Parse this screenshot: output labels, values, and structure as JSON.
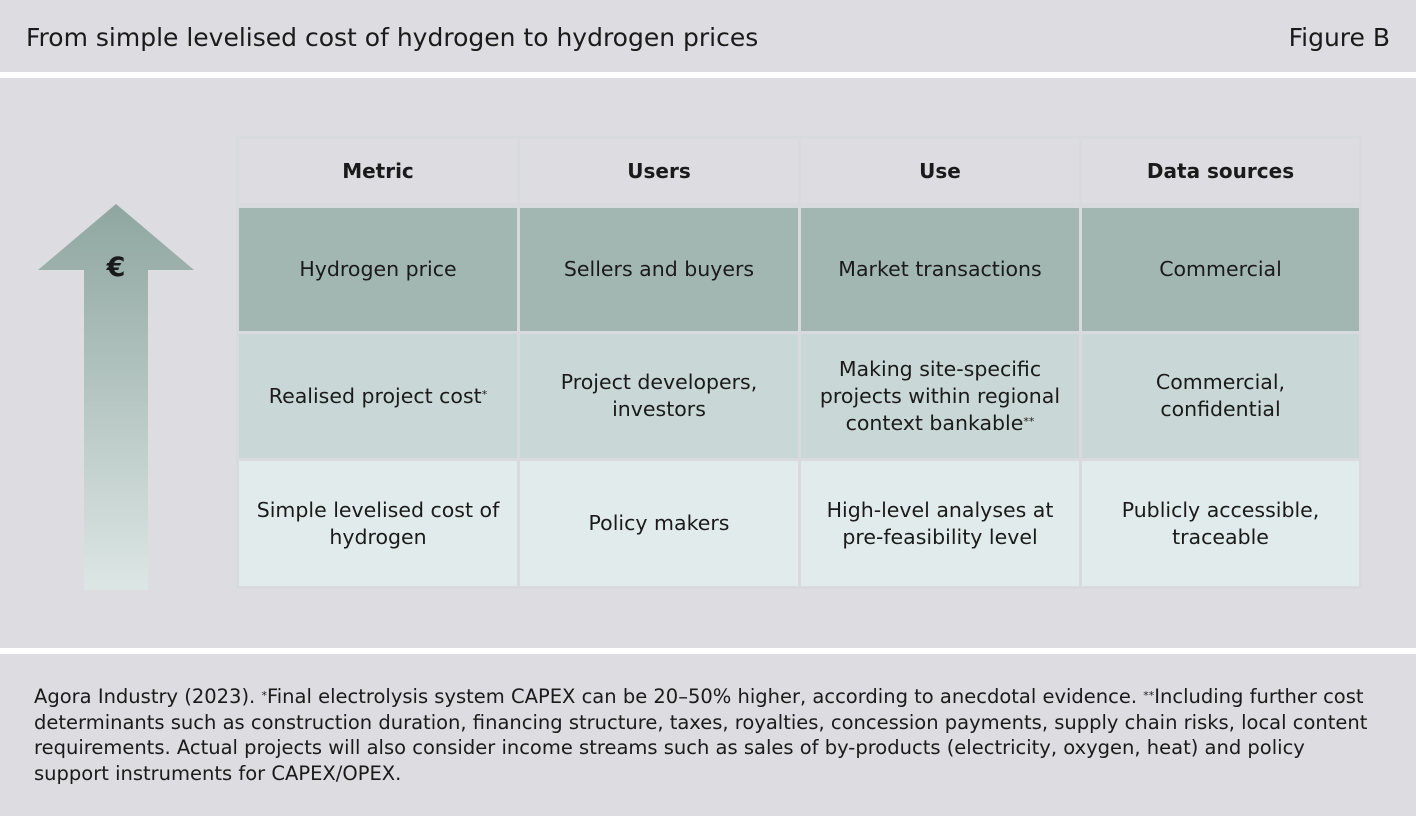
{
  "header": {
    "title": "From simple levelised cost of hydrogen to hydrogen prices",
    "figure_label": "Figure B"
  },
  "arrow": {
    "symbol": "€",
    "color_top": "#8fa6a0",
    "color_bottom": "#dce6e5"
  },
  "table": {
    "columns": [
      "Metric",
      "Users",
      "Use",
      "Data sources"
    ],
    "rows": [
      {
        "metric": "Hydrogen price",
        "metric_mark": "",
        "users": "Sellers and buyers",
        "use_lines": [
          "Market transactions"
        ],
        "use_mark": "",
        "sources": "Commercial",
        "color": "#a2b7b1"
      },
      {
        "metric": "Realised project cost",
        "metric_mark": "*",
        "users": "Project developers, investors",
        "use_lines": [
          "Making site-specific",
          "projects within regional",
          "context bankable"
        ],
        "use_mark": "**",
        "sources": "Commercial, confidential",
        "color": "#c9d8d6"
      },
      {
        "metric": "Simple levelised cost of hydrogen",
        "metric_mark": "",
        "users": "Policy makers",
        "use_lines": [
          "High-level analyses at",
          "pre-feasibility level"
        ],
        "use_mark": "",
        "sources": "Publicly accessible, traceable",
        "color": "#e1ebeb"
      }
    ]
  },
  "footer": {
    "source": "Agora Industry (2023). ",
    "mark1": "*",
    "note1": "Final electrolysis system CAPEX can be 20–50% higher, according to anecdotal evidence. ",
    "mark2": "**",
    "note2": "Including further cost determinants such as construction duration, financing structure, taxes, royalties, concession payments, supply chain risks, local content requirements. Actual projects will also consider income streams such as sales of by-products (electricity, oxygen, heat) and policy support instruments for CAPEX/OPEX."
  }
}
